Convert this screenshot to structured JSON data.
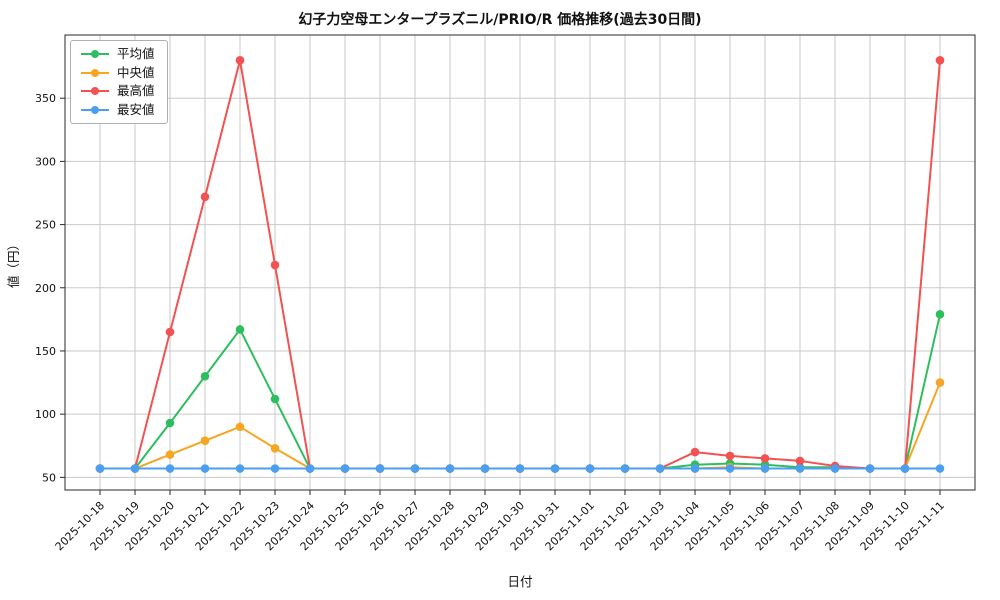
{
  "chart_data": {
    "type": "line",
    "title": "幻子力空母エンタープラズニル/PRIO/R 価格推移(過去30日間)",
    "xlabel": "日付",
    "ylabel": "値（円）",
    "grid": true,
    "legend_position": "upper-left",
    "ylim": [
      40,
      400
    ],
    "yticks": [
      50,
      100,
      150,
      200,
      250,
      300,
      350
    ],
    "categories": [
      "2025-10-18",
      "2025-10-19",
      "2025-10-20",
      "2025-10-21",
      "2025-10-22",
      "2025-10-23",
      "2025-10-24",
      "2025-10-25",
      "2025-10-26",
      "2025-10-27",
      "2025-10-28",
      "2025-10-29",
      "2025-10-30",
      "2025-10-31",
      "2025-11-01",
      "2025-11-02",
      "2025-11-03",
      "2025-11-04",
      "2025-11-05",
      "2025-11-06",
      "2025-11-07",
      "2025-11-08",
      "2025-11-09",
      "2025-11-10",
      "2025-11-11"
    ],
    "series": [
      {
        "name": "平均値",
        "color": "#2fbe5f",
        "values": [
          57,
          57,
          93,
          130,
          167,
          112,
          57,
          57,
          57,
          57,
          57,
          57,
          57,
          57,
          57,
          57,
          57,
          60,
          61,
          60,
          58,
          58,
          57,
          57,
          179
        ]
      },
      {
        "name": "中央値",
        "color": "#f5a623",
        "values": [
          57,
          57,
          68,
          79,
          90,
          73,
          57,
          57,
          57,
          57,
          57,
          57,
          57,
          57,
          57,
          57,
          57,
          57,
          58,
          57,
          57,
          57,
          57,
          57,
          125
        ]
      },
      {
        "name": "最高値",
        "color": "#f25252",
        "values": [
          57,
          57,
          165,
          272,
          380,
          218,
          57,
          57,
          57,
          57,
          57,
          57,
          57,
          57,
          57,
          57,
          57,
          70,
          67,
          65,
          63,
          59,
          57,
          57,
          380
        ]
      },
      {
        "name": "最安値",
        "color": "#4b9ff0",
        "values": [
          57,
          57,
          57,
          57,
          57,
          57,
          57,
          57,
          57,
          57,
          57,
          57,
          57,
          57,
          57,
          57,
          57,
          57,
          57,
          57,
          57,
          57,
          57,
          57,
          57
        ]
      }
    ]
  }
}
